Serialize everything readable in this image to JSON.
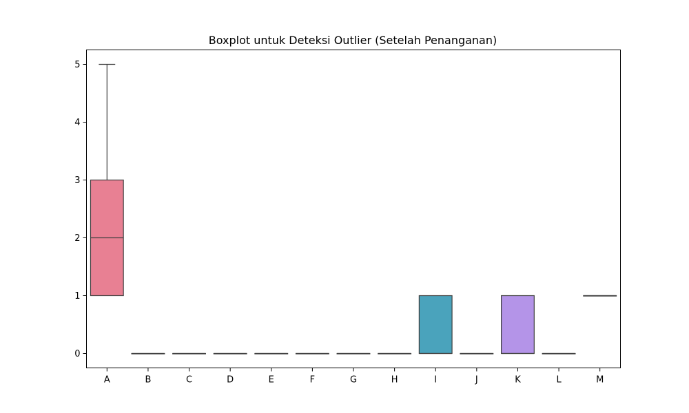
{
  "chart_data": {
    "type": "boxplot",
    "title": "Boxplot untuk Deteksi Outlier (Setelah Penanganan)",
    "xlabel": "",
    "ylabel": "",
    "ylim": [
      -0.25,
      5.25
    ],
    "yticks": [
      0,
      1,
      2,
      3,
      4,
      5
    ],
    "grid": false,
    "categories": [
      "A",
      "B",
      "C",
      "D",
      "E",
      "F",
      "G",
      "H",
      "I",
      "J",
      "K",
      "L",
      "M"
    ],
    "boxes": [
      {
        "category": "A",
        "min": 1,
        "q1": 1,
        "median": 2,
        "q3": 3,
        "max": 5,
        "color": "#e88093"
      },
      {
        "category": "B",
        "min": 0,
        "q1": 0,
        "median": 0,
        "q3": 0,
        "max": 0,
        "color": "#d38c38"
      },
      {
        "category": "C",
        "min": 0,
        "q1": 0,
        "median": 0,
        "q3": 0,
        "max": 0,
        "color": "#b89a3a"
      },
      {
        "category": "D",
        "min": 0,
        "q1": 0,
        "median": 0,
        "q3": 0,
        "max": 0,
        "color": "#97a33a"
      },
      {
        "category": "E",
        "min": 0,
        "q1": 0,
        "median": 0,
        "q3": 0,
        "max": 0,
        "color": "#5aaf42"
      },
      {
        "category": "F",
        "min": 0,
        "q1": 0,
        "median": 0,
        "q3": 0,
        "max": 0,
        "color": "#4aae8a"
      },
      {
        "category": "G",
        "min": 0,
        "q1": 0,
        "median": 0,
        "q3": 0,
        "max": 0,
        "color": "#4aab9f"
      },
      {
        "category": "H",
        "min": 0,
        "q1": 0,
        "median": 0,
        "q3": 0,
        "max": 0,
        "color": "#4aa8ad"
      },
      {
        "category": "I",
        "min": 0,
        "q1": 0,
        "median": 0,
        "q3": 1,
        "max": 1,
        "color": "#4aa3bc"
      },
      {
        "category": "J",
        "min": 0,
        "q1": 0,
        "median": 0,
        "q3": 0,
        "max": 0,
        "color": "#6c9fe0"
      },
      {
        "category": "K",
        "min": 0,
        "q1": 0,
        "median": 0,
        "q3": 1,
        "max": 1,
        "color": "#b494e8"
      },
      {
        "category": "L",
        "min": 0,
        "q1": 0,
        "median": 0,
        "q3": 0,
        "max": 0,
        "color": "#e084dc"
      },
      {
        "category": "M",
        "min": 1,
        "q1": 1,
        "median": 1,
        "q3": 1,
        "max": 1,
        "color": "#e985b7"
      }
    ]
  }
}
